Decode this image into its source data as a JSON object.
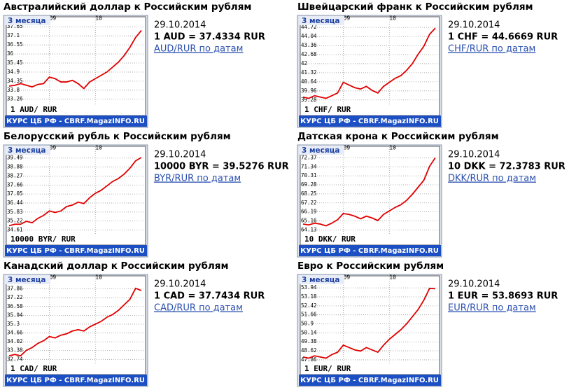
{
  "chart_data": [
    {
      "type": "line",
      "title": "Австралийский доллар к Российским рублям",
      "period": "3 месяца",
      "date": "29.10.2014",
      "rate": "1 AUD = 37.4334 RUR",
      "link": "AUD/RUR по датам",
      "legend": "1 AUD/ RUR",
      "footer": "КУРС ЦБ РФ - CBRF.MagazINFO.RU",
      "categories": [
        null,
        null,
        null,
        null,
        null,
        null,
        null,
        "09",
        null,
        null,
        null,
        null,
        null,
        null,
        null,
        "10",
        null,
        null,
        null,
        null,
        null,
        null,
        null,
        null
      ],
      "series": [
        {
          "color": "#e00000",
          "values": [
            34.05,
            34.1,
            34.2,
            34.1,
            34.0,
            34.15,
            34.2,
            34.6,
            34.5,
            34.3,
            34.3,
            34.4,
            34.2,
            33.9,
            34.3,
            34.5,
            34.7,
            34.9,
            35.2,
            35.5,
            35.9,
            36.4,
            37.0,
            37.43
          ]
        }
      ],
      "ylim": [
        32.9,
        38.0
      ],
      "yticks": [
        33.26,
        33.8,
        34.35,
        34.9,
        35.45,
        36,
        36.55,
        37.1,
        37.65
      ],
      "grid": true
    },
    {
      "type": "line",
      "title": "Швейцарский франк к Российским рублям",
      "period": "3 месяца",
      "date": "29.10.2014",
      "rate": "1 CHF = 44.6669 RUR",
      "link": "CHF/RUR по датам",
      "legend": "1 CHF/ RUR",
      "footer": "КУРС ЦБ РФ - CBRF.MagazINFO.RU",
      "categories": [
        null,
        null,
        null,
        null,
        null,
        null,
        null,
        "09",
        null,
        null,
        null,
        null,
        null,
        null,
        null,
        "10",
        null,
        null,
        null,
        null,
        null,
        null,
        null,
        null
      ],
      "series": [
        {
          "color": "#e00000",
          "values": [
            39.5,
            39.4,
            39.6,
            39.5,
            39.4,
            39.6,
            39.8,
            40.6,
            40.4,
            40.2,
            40.1,
            40.3,
            40.0,
            39.8,
            40.3,
            40.6,
            40.9,
            41.1,
            41.5,
            42.0,
            42.7,
            43.3,
            44.2,
            44.67
          ]
        }
      ],
      "ylim": [
        38.9,
        45.2
      ],
      "yticks": [
        39.28,
        39.96,
        40.64,
        41.32,
        42,
        42.68,
        43.36,
        44.04,
        44.72
      ],
      "grid": true
    },
    {
      "type": "line",
      "title": "Белорусский рубль к Российским рублям",
      "period": "3 месяца",
      "date": "29.10.2014",
      "rate": "10000 BYR = 39.5276 RUR",
      "link": "BYR/RUR по датам",
      "legend": "10000 BYR/ RUR",
      "footer": "КУРС ЦБ РФ - CBRF.MagazINFO.RU",
      "categories": [
        null,
        null,
        null,
        null,
        null,
        null,
        null,
        "09",
        null,
        null,
        null,
        null,
        null,
        null,
        null,
        "10",
        null,
        null,
        null,
        null,
        null,
        null,
        null,
        null
      ],
      "series": [
        {
          "color": "#e00000",
          "values": [
            34.9,
            35.0,
            35.0,
            35.2,
            35.1,
            35.4,
            35.6,
            35.9,
            35.8,
            35.9,
            36.2,
            36.3,
            36.5,
            36.4,
            36.8,
            37.1,
            37.3,
            37.6,
            37.9,
            38.1,
            38.4,
            38.8,
            39.3,
            39.53
          ]
        }
      ],
      "ylim": [
        34.3,
        40.0
      ],
      "yticks": [
        34.61,
        35.22,
        35.83,
        36.44,
        37.05,
        37.66,
        38.27,
        38.88,
        39.49
      ],
      "grid": true
    },
    {
      "type": "line",
      "title": "Датская крона к Российским рублям",
      "period": "3 месяца",
      "date": "29.10.2014",
      "rate": "10 DKK = 72.3783 RUR",
      "link": "DKK/RUR по датам",
      "legend": "10 DKK/ RUR",
      "footer": "КУРС ЦБ РФ - CBRF.MagazINFO.RU",
      "categories": [
        null,
        null,
        null,
        null,
        null,
        null,
        null,
        "09",
        null,
        null,
        null,
        null,
        null,
        null,
        null,
        "10",
        null,
        null,
        null,
        null,
        null,
        null,
        null,
        null
      ],
      "series": [
        {
          "color": "#e00000",
          "values": [
            64.8,
            64.7,
            64.9,
            64.8,
            64.6,
            64.9,
            65.3,
            66.0,
            65.9,
            65.7,
            65.4,
            65.7,
            65.5,
            65.2,
            65.9,
            66.3,
            66.7,
            67.0,
            67.5,
            68.2,
            69.0,
            69.8,
            71.4,
            72.38
          ]
        }
      ],
      "ylim": [
        63.6,
        73.2
      ],
      "yticks": [
        64.13,
        65.16,
        66.19,
        67.22,
        68.25,
        69.28,
        70.31,
        71.34,
        72.37
      ],
      "grid": true
    },
    {
      "type": "line",
      "title": "Канадский доллар к Российским рублям",
      "period": "3 месяца",
      "date": "29.10.2014",
      "rate": "1 CAD = 37.7434 RUR",
      "link": "CAD/RUR по датам",
      "legend": "1 CAD/ RUR",
      "footer": "КУРС ЦБ РФ - CBRF.MagazINFO.RU",
      "categories": [
        null,
        null,
        null,
        null,
        null,
        null,
        null,
        "09",
        null,
        null,
        null,
        null,
        null,
        null,
        null,
        "10",
        null,
        null,
        null,
        null,
        null,
        null,
        null,
        null
      ],
      "series": [
        {
          "color": "#e00000",
          "values": [
            33.0,
            33.1,
            33.0,
            33.4,
            33.6,
            33.9,
            34.1,
            34.4,
            34.3,
            34.5,
            34.6,
            34.8,
            34.9,
            34.8,
            35.1,
            35.3,
            35.5,
            35.8,
            36.0,
            36.3,
            36.7,
            37.1,
            37.9,
            37.74
          ]
        }
      ],
      "ylim": [
        32.4,
        38.5
      ],
      "yticks": [
        32.74,
        33.38,
        34.02,
        34.66,
        35.3,
        35.94,
        36.58,
        37.22,
        37.86
      ],
      "grid": true
    },
    {
      "type": "line",
      "title": "Евро к Российским рублям",
      "period": "3 месяца",
      "date": "29.10.2014",
      "rate": "1 EUR = 53.8693 RUR",
      "link": "EUR/RUR по датам",
      "legend": "1 EUR/ RUR",
      "footer": "КУРС ЦБ РФ - CBRF.MagazINFO.RU",
      "categories": [
        null,
        null,
        null,
        null,
        null,
        null,
        null,
        "09",
        null,
        null,
        null,
        null,
        null,
        null,
        null,
        "10",
        null,
        null,
        null,
        null,
        null,
        null,
        null,
        null
      ],
      "series": [
        {
          "color": "#e00000",
          "values": [
            48.1,
            48.0,
            48.2,
            48.1,
            48.0,
            48.3,
            48.5,
            49.1,
            48.9,
            48.7,
            48.6,
            48.9,
            48.7,
            48.5,
            49.1,
            49.6,
            50.0,
            50.4,
            50.9,
            51.5,
            52.1,
            52.9,
            53.9,
            53.87
          ]
        }
      ],
      "ylim": [
        47.5,
        54.6
      ],
      "yticks": [
        47.86,
        48.62,
        49.38,
        50.14,
        50.9,
        51.66,
        52.42,
        53.18,
        53.94
      ],
      "grid": true
    }
  ]
}
